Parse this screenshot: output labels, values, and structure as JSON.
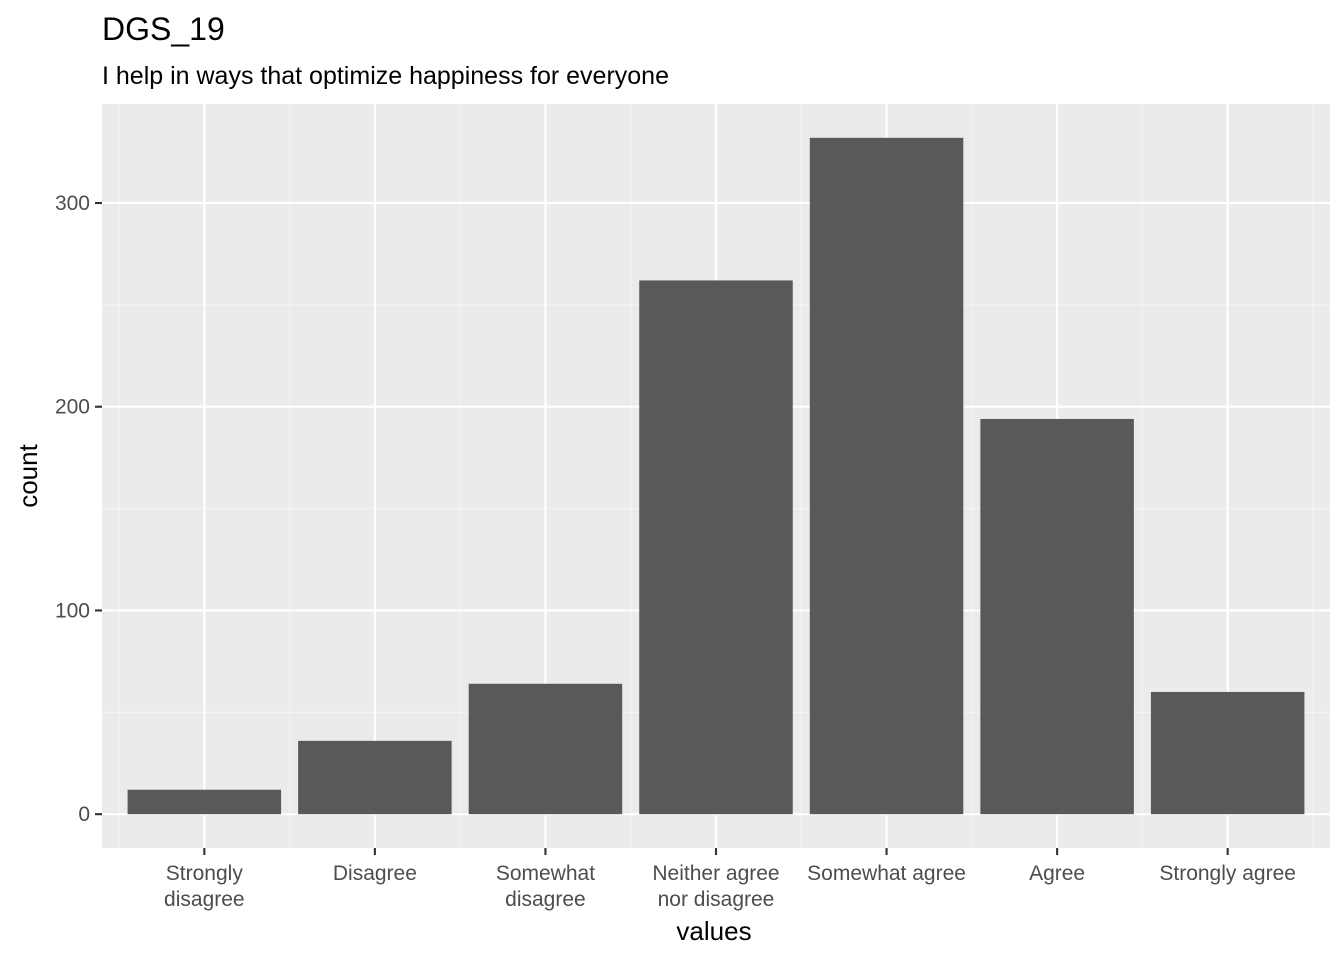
{
  "chart_data": {
    "type": "bar",
    "title": "DGS_19",
    "subtitle": "I help in ways that optimize happiness for everyone",
    "xlabel": "values",
    "ylabel": "count",
    "categories": [
      "Strongly disagree",
      "Disagree",
      "Somewhat disagree",
      "Neither agree nor disagree",
      "Somewhat agree",
      "Agree",
      "Strongly agree"
    ],
    "category_label_lines": [
      [
        "Strongly",
        "disagree"
      ],
      [
        "Disagree"
      ],
      [
        "Somewhat",
        "disagree"
      ],
      [
        "Neither agree",
        "nor disagree"
      ],
      [
        "Somewhat agree"
      ],
      [
        "Agree"
      ],
      [
        "Strongly agree"
      ]
    ],
    "values": [
      12,
      36,
      64,
      262,
      332,
      194,
      60
    ],
    "y_ticks": [
      0,
      100,
      200,
      300
    ],
    "ylim": [
      -16.6,
      348.6
    ],
    "grid": true,
    "legend": "none",
    "colors": {
      "bar": "#595959",
      "panel": "#ebebeb",
      "grid_major": "#ffffff",
      "grid_minor": "#f5f5f5",
      "tick": "#333333",
      "tick_text": "#4d4d4d"
    }
  }
}
